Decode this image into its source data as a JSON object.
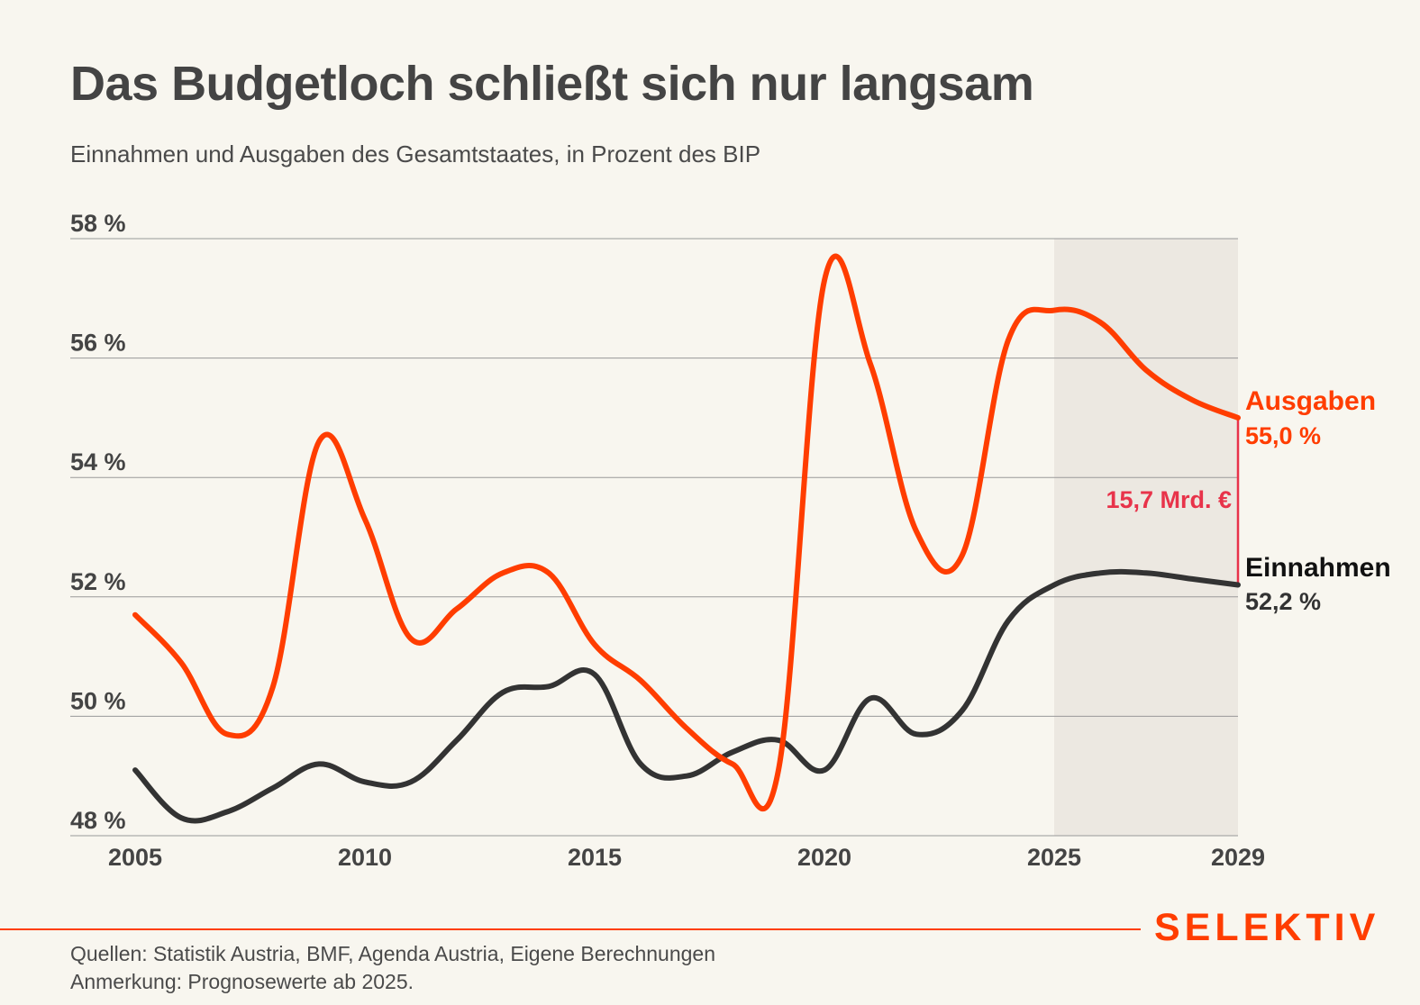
{
  "title": "Das Budgetloch schließt sich nur langsam",
  "subtitle": "Einnahmen und Ausgaben des Gesamtstaates, in Prozent des BIP",
  "annotation_gap": "15,7 Mrd. €",
  "labels": {
    "ausgaben_name": "Ausgaben",
    "ausgaben_value": "55,0 %",
    "einnahmen_name": "Einnahmen",
    "einnahmen_value": "52,2 %"
  },
  "logo": "SELEKTIV",
  "footer": {
    "sources": "Quellen: Statistik Austria, BMF, Agenda Austria, Eigene Berechnungen",
    "note": "Anmerkung: Prognosewerte ab 2025."
  },
  "colors": {
    "ausgaben": "#ff3d00",
    "einnahmen": "#333333",
    "gap": "#e8334a",
    "forecast_band": "#ece8e1",
    "grid": "#999999",
    "background": "#f8f6ef"
  },
  "chart_data": {
    "type": "line",
    "title": "Das Budgetloch schließt sich nur langsam",
    "subtitle": "Einnahmen und Ausgaben des Gesamtstaates, in Prozent des BIP",
    "xlim": [
      2005,
      2029
    ],
    "ylim": [
      48,
      58
    ],
    "x_ticks": [
      2005,
      2010,
      2015,
      2020,
      2025,
      2029
    ],
    "x_tick_labels": [
      "2005",
      "2010",
      "2015",
      "2020",
      "2025",
      "2029"
    ],
    "y_ticks": [
      48,
      50,
      52,
      54,
      56,
      58
    ],
    "y_tick_labels": [
      "48 %",
      "50 %",
      "52 %",
      "54 %",
      "56 %",
      "58 %"
    ],
    "grid": "horizontal",
    "forecast_from": 2025,
    "x": [
      2005,
      2006,
      2007,
      2008,
      2009,
      2010,
      2011,
      2012,
      2013,
      2014,
      2015,
      2016,
      2017,
      2018,
      2019,
      2020,
      2021,
      2022,
      2023,
      2024,
      2025,
      2026,
      2027,
      2028,
      2029
    ],
    "series": [
      {
        "name": "Ausgaben",
        "values": [
          51.7,
          50.9,
          49.7,
          50.5,
          54.6,
          53.3,
          51.3,
          51.8,
          52.4,
          52.4,
          51.2,
          50.6,
          49.8,
          49.2,
          49.1,
          57.3,
          55.9,
          53.1,
          52.7,
          56.3,
          56.8,
          56.6,
          55.8,
          55.3,
          55.0
        ]
      },
      {
        "name": "Einnahmen",
        "values": [
          49.1,
          48.3,
          48.4,
          48.8,
          49.2,
          48.9,
          48.9,
          49.6,
          50.4,
          50.5,
          50.7,
          49.2,
          49.0,
          49.4,
          49.6,
          49.1,
          50.3,
          49.7,
          50.1,
          51.6,
          52.2,
          52.4,
          52.4,
          52.3,
          52.2
        ]
      }
    ]
  }
}
